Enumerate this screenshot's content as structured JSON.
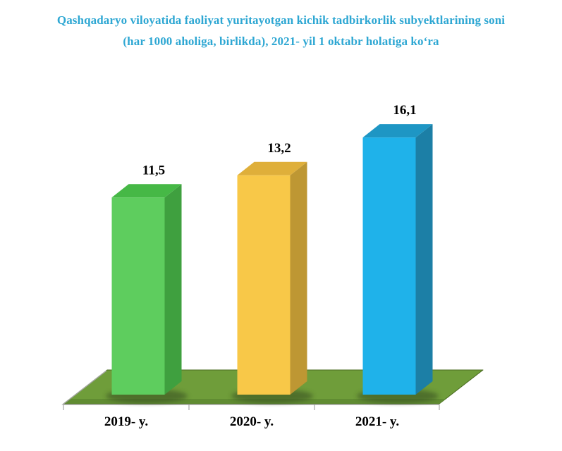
{
  "title": {
    "line1": "Qashqadaryo viloyatida faoliyat yuritayotgan kichik tadbirkorlik subyektlarining soni",
    "line2": "(har 1000 aholiga, birlikda), 2021- yil 1 oktabr holatiga ko‘ra",
    "color": "#2EA7D3"
  },
  "chart_data": {
    "type": "bar",
    "style": "3d-column",
    "title": "Qashqadaryo viloyatida faoliyat yuritayotgan kichik tadbirkorlik subyektlarining soni (har 1000 aholiga, birlikda), 2021- yil 1 oktabr holatiga ko‘ra",
    "categories": [
      "2019- y.",
      "2020- y.",
      "2021- y."
    ],
    "values": [
      11.5,
      13.2,
      16.1
    ],
    "value_labels": [
      "11,5",
      "13,2",
      "16,1"
    ],
    "xlabel": "",
    "ylabel": "",
    "legend": false,
    "gridlines": false,
    "value_axis_visible": false,
    "colors": {
      "bars": [
        {
          "front": "#5ECD5E",
          "top": "#46B846",
          "side": "#3FA03F"
        },
        {
          "front": "#F8C848",
          "top": "#DFAF3A",
          "side": "#BE9733"
        },
        {
          "front": "#1FB2EA",
          "top": "#1E96C4",
          "side": "#1C7FA6"
        }
      ],
      "floor": "#6F9D3A",
      "floor_front_strip": "#5E8A31",
      "floor_edge": "#48691F",
      "axis": "#A6A6A6",
      "shadow": "#2E431A",
      "data_label": "#000000",
      "category_label": "#000000"
    }
  }
}
